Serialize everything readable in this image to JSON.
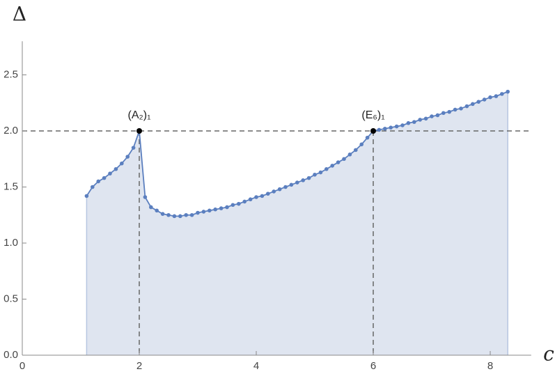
{
  "chart_data": {
    "type": "line",
    "xlabel": "c",
    "ylabel": "Δ",
    "x": [
      1.1,
      1.2,
      1.3,
      1.4,
      1.5,
      1.6,
      1.7,
      1.8,
      1.9,
      2.0,
      2.1,
      2.2,
      2.3,
      2.4,
      2.5,
      2.6,
      2.7,
      2.8,
      2.9,
      3.0,
      3.1,
      3.2,
      3.3,
      3.4,
      3.5,
      3.6,
      3.7,
      3.8,
      3.9,
      4.0,
      4.1,
      4.2,
      4.3,
      4.4,
      4.5,
      4.6,
      4.7,
      4.8,
      4.9,
      5.0,
      5.1,
      5.2,
      5.3,
      5.4,
      5.5,
      5.6,
      5.7,
      5.8,
      5.9,
      6.0,
      6.1,
      6.2,
      6.3,
      6.4,
      6.5,
      6.6,
      6.7,
      6.8,
      6.9,
      7.0,
      7.1,
      7.2,
      7.3,
      7.4,
      7.5,
      7.6,
      7.7,
      7.8,
      7.9,
      8.0,
      8.1,
      8.2,
      8.3
    ],
    "series": [
      {
        "color": "#5b7fbf",
        "fill": "#dfe5f0",
        "values": [
          1.42,
          1.5,
          1.55,
          1.58,
          1.62,
          1.66,
          1.71,
          1.77,
          1.85,
          2.0,
          1.41,
          1.32,
          1.29,
          1.26,
          1.25,
          1.24,
          1.24,
          1.25,
          1.25,
          1.27,
          1.28,
          1.29,
          1.3,
          1.31,
          1.32,
          1.34,
          1.35,
          1.37,
          1.39,
          1.41,
          1.42,
          1.44,
          1.46,
          1.48,
          1.5,
          1.52,
          1.54,
          1.56,
          1.58,
          1.61,
          1.63,
          1.66,
          1.69,
          1.72,
          1.75,
          1.79,
          1.83,
          1.88,
          1.94,
          2.0,
          2.01,
          2.02,
          2.03,
          2.04,
          2.05,
          2.07,
          2.08,
          2.1,
          2.11,
          2.13,
          2.14,
          2.16,
          2.17,
          2.19,
          2.2,
          2.22,
          2.24,
          2.26,
          2.28,
          2.3,
          2.31,
          2.33,
          2.35
        ]
      }
    ],
    "hline": 2,
    "annotations": [
      {
        "text": "(A₂)₁",
        "x": 2,
        "y": 2
      },
      {
        "text": "(E₆)₁",
        "x": 6,
        "y": 2
      }
    ],
    "xlim": [
      0,
      8.7
    ],
    "ylim": [
      0,
      2.8
    ],
    "xticks": [
      0,
      2,
      4,
      6,
      8
    ],
    "yticks": [
      {
        "value": 0,
        "label": "0.0"
      },
      {
        "value": 0.5,
        "label": "0.5"
      },
      {
        "value": 1,
        "label": "1.0"
      },
      {
        "value": 1.5,
        "label": "1.5"
      },
      {
        "value": 2,
        "label": "2.0"
      },
      {
        "value": 2.5,
        "label": "2.5"
      }
    ]
  }
}
